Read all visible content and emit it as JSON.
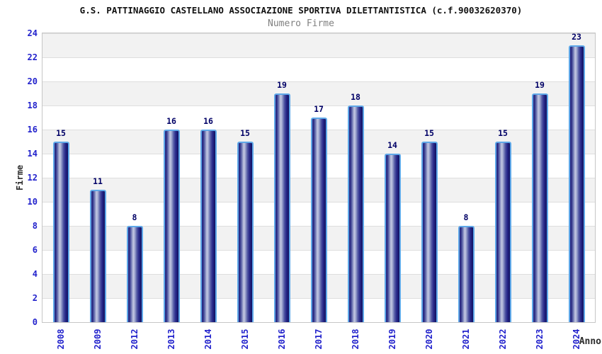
{
  "title": "G.S. PATTINAGGIO CASTELLANO ASSOCIAZIONE SPORTIVA DILETTANTISTICA (c.f.90032620370)",
  "subtitle": "Numero Firme",
  "chart_data": {
    "type": "bar",
    "title": "G.S. PATTINAGGIO CASTELLANO ASSOCIAZIONE SPORTIVA DILETTANTISTICA (c.f.90032620370)",
    "subtitle": "Numero Firme",
    "categories": [
      "2008",
      "2009",
      "2012",
      "2013",
      "2014",
      "2015",
      "2016",
      "2017",
      "2018",
      "2019",
      "2020",
      "2021",
      "2022",
      "2023",
      "2024"
    ],
    "values": [
      15,
      11,
      8,
      16,
      16,
      15,
      19,
      17,
      18,
      14,
      15,
      8,
      15,
      19,
      23
    ],
    "xlabel": "Anno",
    "ylabel": "Firme",
    "ylim": [
      0,
      24
    ],
    "ytick_step": 2,
    "yticks": [
      0,
      2,
      4,
      6,
      8,
      10,
      12,
      14,
      16,
      18,
      20,
      22,
      24
    ],
    "grid": true,
    "legend": "none",
    "colors": {
      "tick_label": "#2222cc",
      "value_label": "#000066",
      "bar_border": "#5fa8e8",
      "bar_dark": "#23237d",
      "bar_light": "#c3c9e2",
      "band_gray": "#f2f2f2",
      "band_white": "#ffffff",
      "gridline": "#dedede",
      "plot_border": "#c6c6c6",
      "subtitle_gray": "#808080",
      "title_black": "#111111"
    }
  }
}
